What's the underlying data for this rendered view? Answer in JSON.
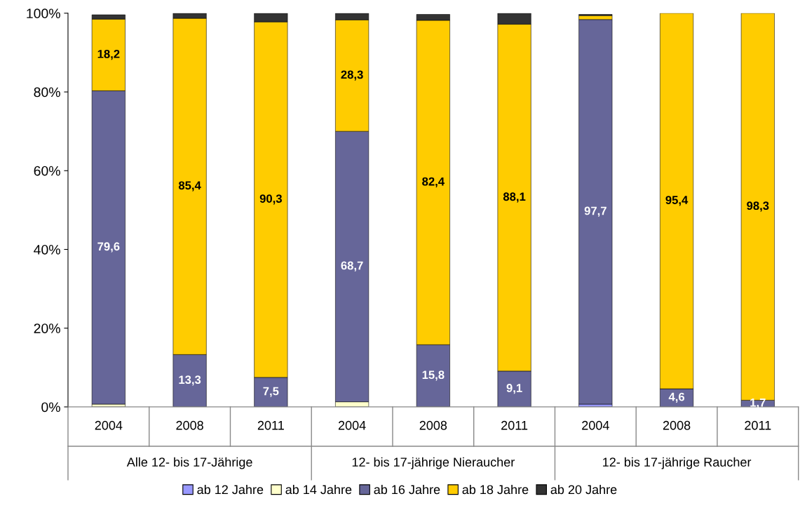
{
  "chart_data": {
    "type": "bar",
    "stacked": true,
    "categories": [
      "2004",
      "2008",
      "2011",
      "2004",
      "2008",
      "2011",
      "2004",
      "2008",
      "2011"
    ],
    "series": [
      {
        "name": "ab 12 Jahre",
        "color": "#9999ff",
        "values": [
          null,
          null,
          null,
          null,
          null,
          null,
          0.7,
          null,
          null
        ]
      },
      {
        "name": "ab 14 Jahre",
        "color": "#ffffcc",
        "values": [
          0.7,
          null,
          null,
          1.3,
          null,
          null,
          null,
          null,
          null
        ]
      },
      {
        "name": "ab 16 Jahre",
        "color": "#666699",
        "values": [
          79.6,
          13.3,
          7.5,
          68.7,
          15.8,
          9.1,
          97.7,
          4.6,
          1.7
        ],
        "value_labels": [
          "79,6",
          "13,3",
          "7,5",
          "68,7",
          "15,8",
          "9,1",
          "97,7",
          "4,6",
          "1,7"
        ]
      },
      {
        "name": "ab 18 Jahre",
        "color": "#ffcc00",
        "values": [
          18.2,
          85.4,
          90.3,
          28.3,
          82.4,
          88.1,
          1.0,
          95.4,
          98.3
        ],
        "value_labels": [
          "18,2",
          "85,4",
          "90,3",
          "28,3",
          "82,4",
          "88,1",
          null,
          "95,4",
          "98,3"
        ]
      },
      {
        "name": "ab 20 Jahre",
        "color": "#333333",
        "values": [
          1.1,
          1.3,
          2.2,
          1.7,
          1.5,
          2.8,
          0.3,
          null,
          null
        ]
      }
    ],
    "ylim": [
      0,
      100
    ],
    "yticks": [
      {
        "value": 0,
        "label": "0%"
      },
      {
        "value": 20,
        "label": "20%"
      },
      {
        "value": 40,
        "label": "40%"
      },
      {
        "value": 60,
        "label": "60%"
      },
      {
        "value": 80,
        "label": "80%"
      },
      {
        "value": 100,
        "label": "100%"
      }
    ],
    "annotations": [
      "Alle 12- bis 17-Jährige",
      "12- bis 17-jährige Nieraucher",
      "12- bis 17-jährige Raucher"
    ],
    "grid": false,
    "legend": "bottom"
  }
}
